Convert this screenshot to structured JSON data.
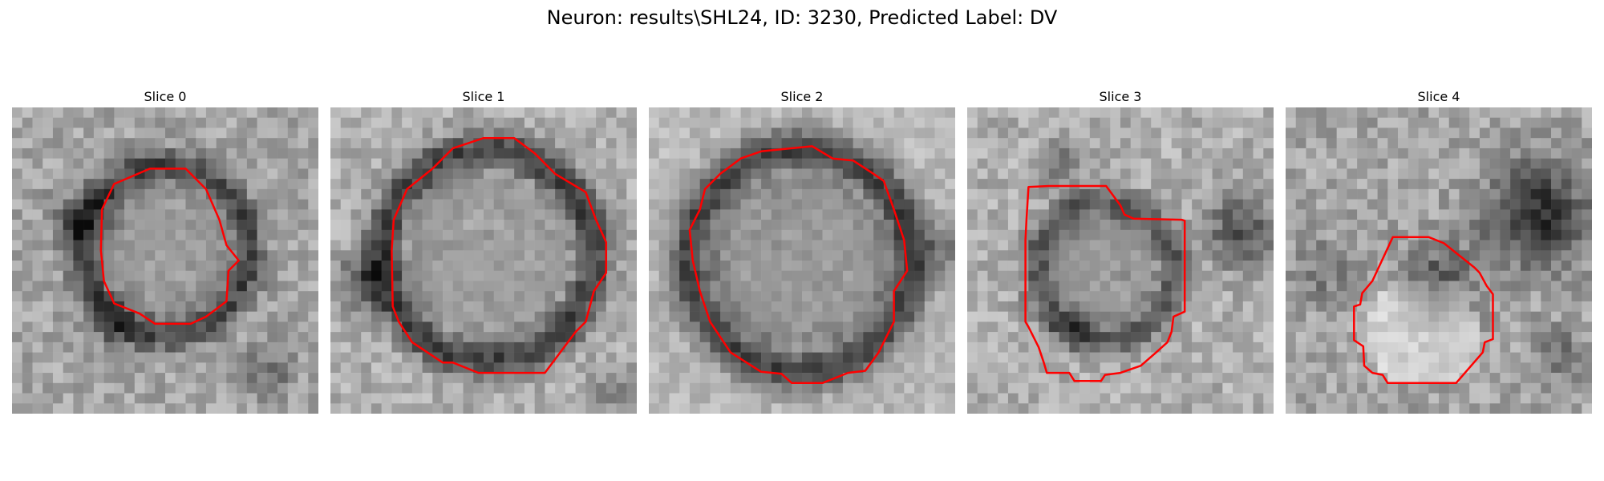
{
  "figure": {
    "title": "Neuron: results\\SHL24, ID: 3230, Predicted Label: DV"
  },
  "panels": [
    {
      "title": "Slice 0"
    },
    {
      "title": "Slice 1"
    },
    {
      "title": "Slice 2"
    },
    {
      "title": "Slice 3"
    },
    {
      "title": "Slice 4"
    }
  ],
  "colors": {
    "contour": "#ff0000",
    "background": "#ffffff"
  }
}
